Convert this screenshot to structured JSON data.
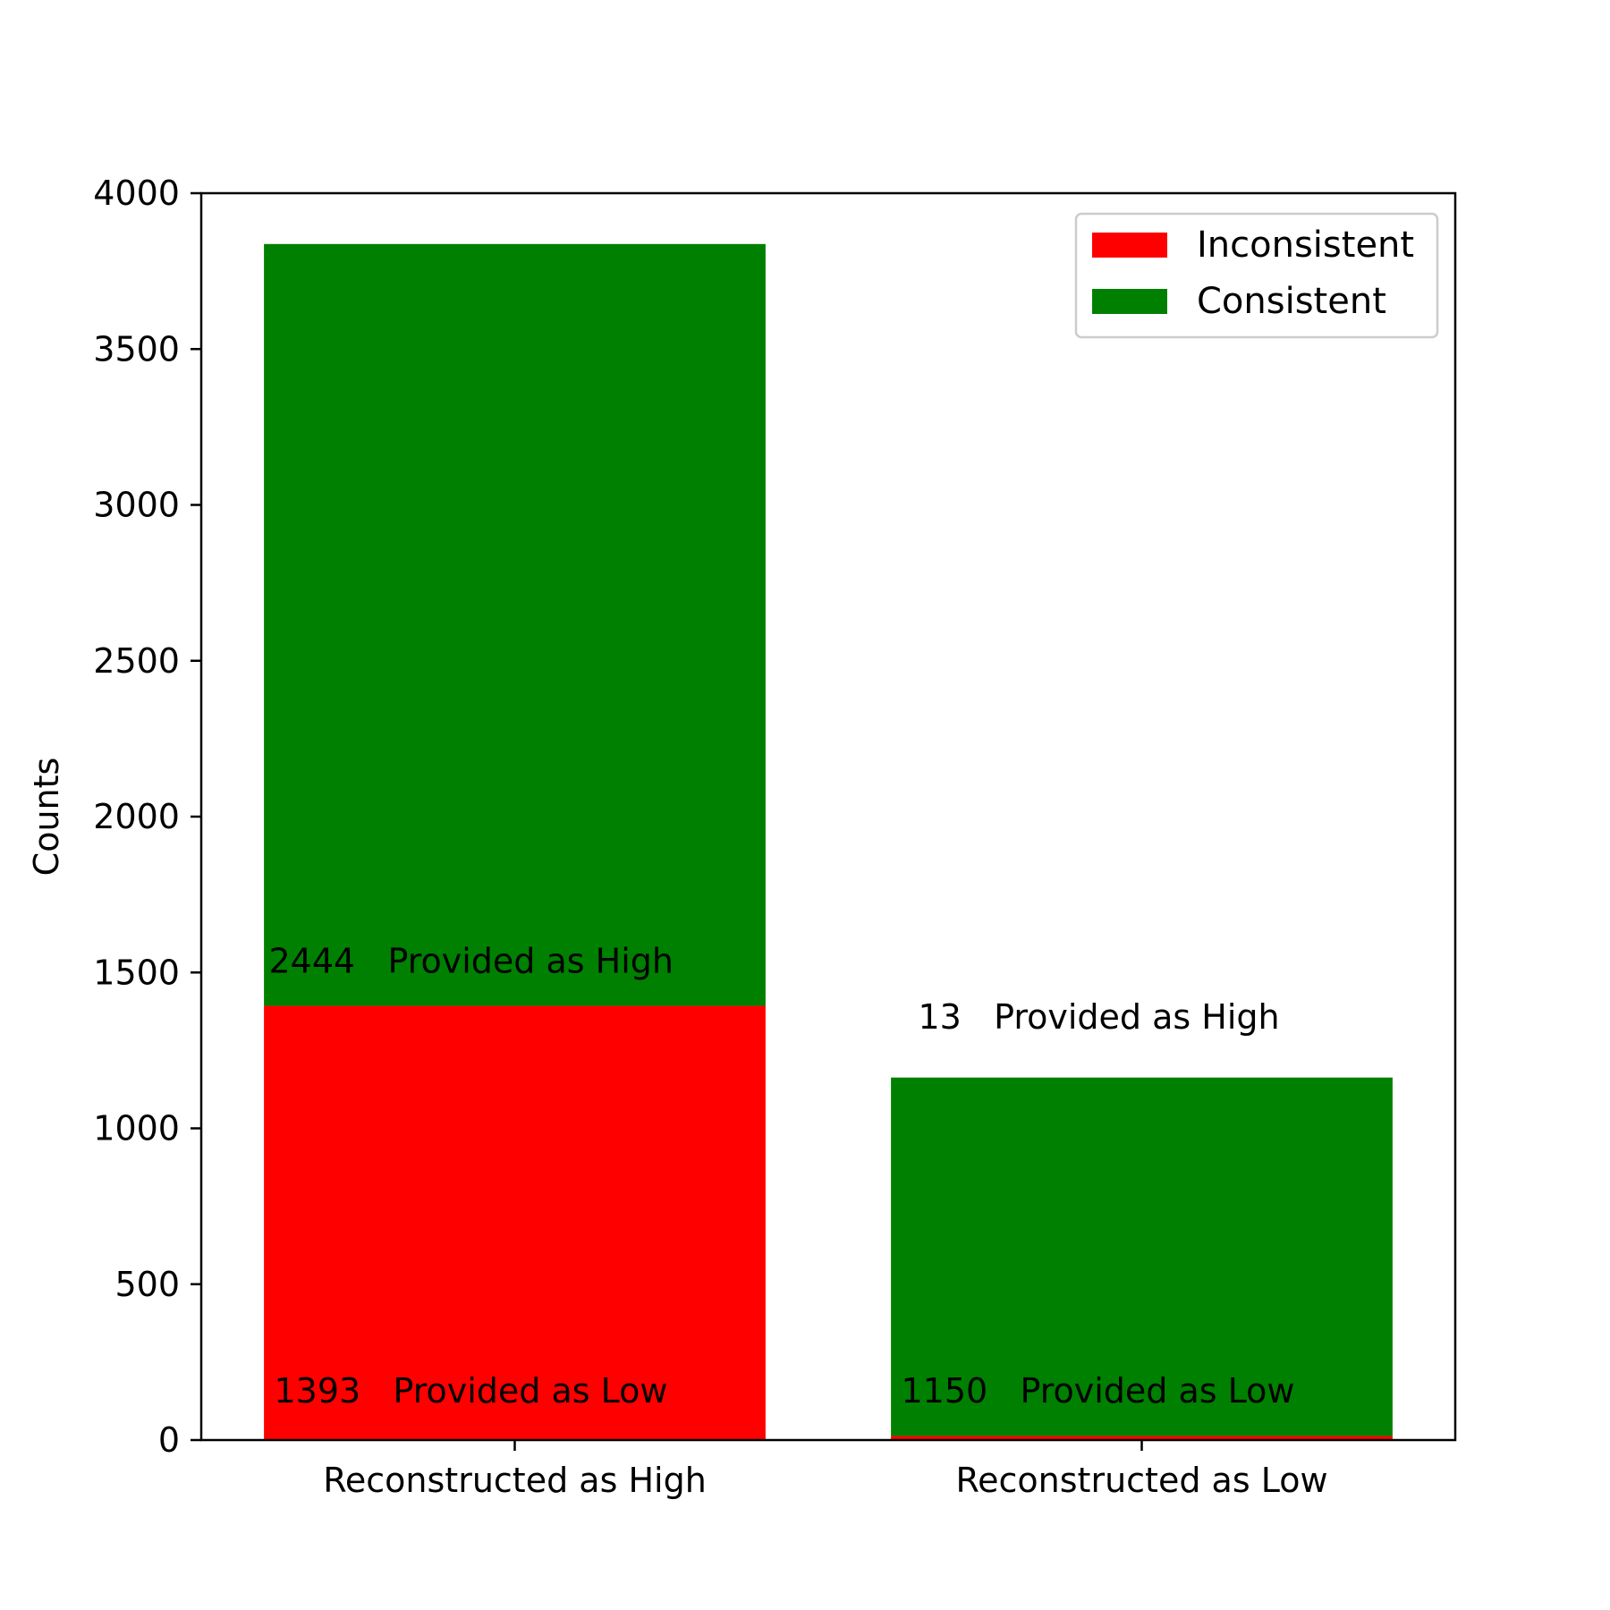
{
  "chart_data": {
    "type": "bar",
    "stacked": true,
    "categories": [
      "Reconstructed as High",
      "Reconstructed as Low"
    ],
    "series": [
      {
        "name": "Inconsistent",
        "values": [
          1393,
          13
        ]
      },
      {
        "name": "Consistent",
        "values": [
          2444,
          1150
        ]
      }
    ],
    "colors": {
      "Inconsistent": "#ff0000",
      "Consistent": "#008000"
    },
    "ylabel": "Counts",
    "ylim": [
      0,
      4000
    ],
    "yticks": [
      0,
      500,
      1000,
      1500,
      2000,
      2500,
      3000,
      3500,
      4000
    ],
    "legend": {
      "position": "top-right",
      "entries": [
        "Inconsistent",
        "Consistent"
      ]
    },
    "grid": false,
    "annotations": [
      {
        "bar": 0,
        "value": "2444",
        "text": "Provided as High"
      },
      {
        "bar": 0,
        "value": "1393",
        "text": "Provided as Low"
      },
      {
        "bar": 1,
        "value": "13",
        "text": "Provided as High"
      },
      {
        "bar": 1,
        "value": "1150",
        "text": "Provided as Low"
      }
    ]
  }
}
